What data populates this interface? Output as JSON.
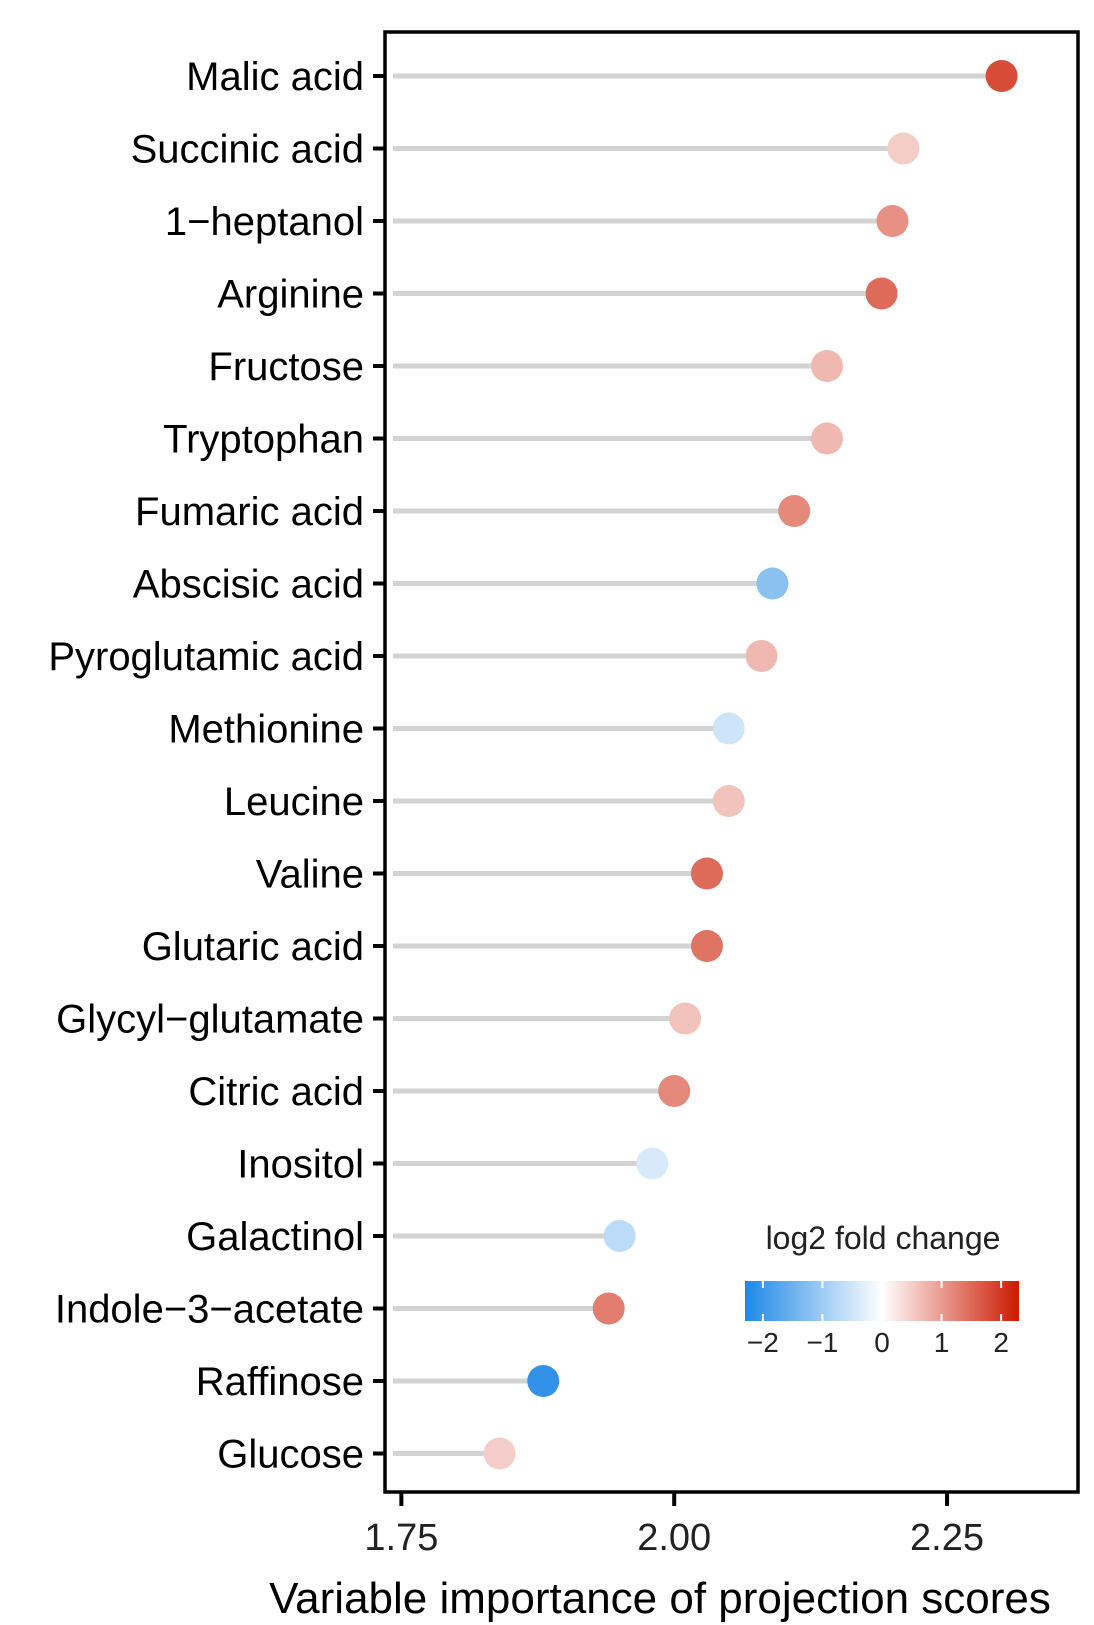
{
  "chart_data": {
    "type": "lollipop",
    "xlabel": "Variable importance of projection scores",
    "xlim": [
      1.735,
      2.37
    ],
    "xticks": [
      1.75,
      2.0,
      2.25
    ],
    "xtick_labels": [
      "1.75",
      "2.00",
      "2.25"
    ],
    "grid": false,
    "color_scale": {
      "title": "log2 fold change",
      "min": -2.3,
      "max": 2.3,
      "ticks": [
        -2,
        -1,
        0,
        1,
        2
      ],
      "tick_labels": [
        "−2",
        "−1",
        "0",
        "1",
        "2"
      ],
      "low_color": "#1e88e5",
      "mid_color": "#ffffff",
      "high_color": "#cc1a00",
      "legend_position": "bottom-right"
    },
    "categories": [
      "Malic acid",
      "Succinic acid",
      "1−heptanol",
      "Arginine",
      "Fructose",
      "Tryptophan",
      "Fumaric acid",
      "Abscisic acid",
      "Pyroglutamic acid",
      "Methionine",
      "Leucine",
      "Valine",
      "Glutaric acid",
      "Glycyl−glutamate",
      "Citric acid",
      "Inositol",
      "Galactinol",
      "Indole−3−acetate",
      "Raffinose",
      "Glucose"
    ],
    "values": [
      2.3,
      2.21,
      2.2,
      2.19,
      2.14,
      2.14,
      2.11,
      2.09,
      2.08,
      2.05,
      2.05,
      2.03,
      2.03,
      2.01,
      2.0,
      1.98,
      1.95,
      1.94,
      1.88,
      1.84
    ],
    "log2_fold_change": [
      1.8,
      0.5,
      1.1,
      1.5,
      0.7,
      0.7,
      1.2,
      -1.2,
      0.7,
      -0.5,
      0.6,
      1.5,
      1.4,
      0.6,
      1.2,
      -0.4,
      -0.7,
      1.3,
      -2.1,
      0.5
    ]
  }
}
